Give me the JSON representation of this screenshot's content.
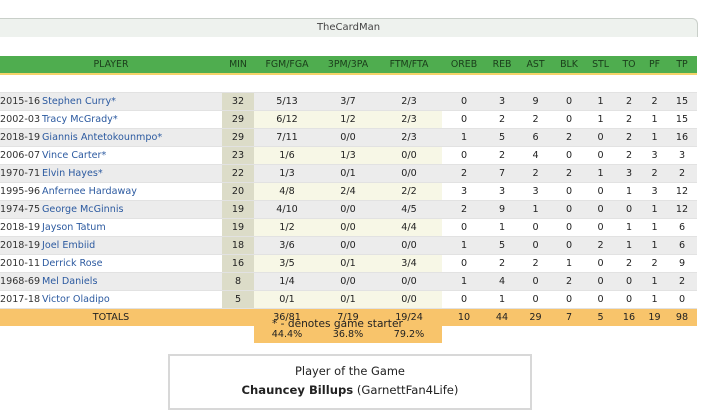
{
  "team": "TheCardMan",
  "headers": {
    "player": "PLAYER",
    "min": "MIN",
    "fgm": "FGM/FGA",
    "tpm": "3PM/3PA",
    "ftm": "FTM/FTA",
    "oreb": "OREB",
    "reb": "REB",
    "ast": "AST",
    "blk": "BLK",
    "stl": "STL",
    "to": "TO",
    "pf": "PF",
    "tp": "TP"
  },
  "players": [
    {
      "year": "2015-16",
      "name": "Stephen Curry*",
      "min": "32",
      "fg": "5/13",
      "tp3": "3/7",
      "ft": "2/3",
      "oreb": "0",
      "reb": "3",
      "ast": "9",
      "blk": "0",
      "stl": "1",
      "to": "2",
      "pf": "2",
      "pts": "15"
    },
    {
      "year": "2002-03",
      "name": "Tracy McGrady*",
      "min": "29",
      "fg": "6/12",
      "tp3": "1/2",
      "ft": "2/3",
      "oreb": "0",
      "reb": "2",
      "ast": "2",
      "blk": "0",
      "stl": "1",
      "to": "2",
      "pf": "1",
      "pts": "15"
    },
    {
      "year": "2018-19",
      "name": "Giannis Antetokounmpo*",
      "min": "29",
      "fg": "7/11",
      "tp3": "0/0",
      "ft": "2/3",
      "oreb": "1",
      "reb": "5",
      "ast": "6",
      "blk": "2",
      "stl": "0",
      "to": "2",
      "pf": "1",
      "pts": "16"
    },
    {
      "year": "2006-07",
      "name": "Vince Carter*",
      "min": "23",
      "fg": "1/6",
      "tp3": "1/3",
      "ft": "0/0",
      "oreb": "0",
      "reb": "2",
      "ast": "4",
      "blk": "0",
      "stl": "0",
      "to": "2",
      "pf": "3",
      "pts": "3"
    },
    {
      "year": "1970-71",
      "name": "Elvin Hayes*",
      "min": "22",
      "fg": "1/3",
      "tp3": "0/1",
      "ft": "0/0",
      "oreb": "2",
      "reb": "7",
      "ast": "2",
      "blk": "2",
      "stl": "1",
      "to": "3",
      "pf": "2",
      "pts": "2"
    },
    {
      "year": "1995-96",
      "name": "Anfernee Hardaway",
      "min": "20",
      "fg": "4/8",
      "tp3": "2/4",
      "ft": "2/2",
      "oreb": "3",
      "reb": "3",
      "ast": "3",
      "blk": "0",
      "stl": "0",
      "to": "1",
      "pf": "3",
      "pts": "12"
    },
    {
      "year": "1974-75",
      "name": "George McGinnis",
      "min": "19",
      "fg": "4/10",
      "tp3": "0/0",
      "ft": "4/5",
      "oreb": "2",
      "reb": "9",
      "ast": "1",
      "blk": "0",
      "stl": "0",
      "to": "0",
      "pf": "1",
      "pts": "12"
    },
    {
      "year": "2018-19",
      "name": "Jayson Tatum",
      "min": "19",
      "fg": "1/2",
      "tp3": "0/0",
      "ft": "4/4",
      "oreb": "0",
      "reb": "1",
      "ast": "0",
      "blk": "0",
      "stl": "0",
      "to": "1",
      "pf": "1",
      "pts": "6"
    },
    {
      "year": "2018-19",
      "name": "Joel Embiid",
      "min": "18",
      "fg": "3/6",
      "tp3": "0/0",
      "ft": "0/0",
      "oreb": "1",
      "reb": "5",
      "ast": "0",
      "blk": "0",
      "stl": "2",
      "to": "1",
      "pf": "1",
      "pts": "6"
    },
    {
      "year": "2010-11",
      "name": "Derrick Rose",
      "min": "16",
      "fg": "3/5",
      "tp3": "0/1",
      "ft": "3/4",
      "oreb": "0",
      "reb": "2",
      "ast": "2",
      "blk": "1",
      "stl": "0",
      "to": "2",
      "pf": "2",
      "pts": "9"
    },
    {
      "year": "1968-69",
      "name": "Mel Daniels",
      "min": "8",
      "fg": "1/4",
      "tp3": "0/0",
      "ft": "0/0",
      "oreb": "1",
      "reb": "4",
      "ast": "0",
      "blk": "2",
      "stl": "0",
      "to": "0",
      "pf": "1",
      "pts": "2"
    },
    {
      "year": "2017-18",
      "name": "Victor Oladipo",
      "min": "5",
      "fg": "0/1",
      "tp3": "0/1",
      "ft": "0/0",
      "oreb": "0",
      "reb": "1",
      "ast": "0",
      "blk": "0",
      "stl": "0",
      "to": "0",
      "pf": "1",
      "pts": "0"
    }
  ],
  "totals": {
    "label": "TOTALS",
    "fg": "36/81",
    "tp3": "7/19",
    "ft": "19/24",
    "oreb": "10",
    "reb": "44",
    "ast": "29",
    "blk": "7",
    "stl": "5",
    "to": "16",
    "pf": "19",
    "pts": "98",
    "fg_pct": "44.4%",
    "tp3_pct": "36.8%",
    "ft_pct": "79.2%"
  },
  "starter_note": "* - denotes game starter",
  "player_of_game": {
    "title": "Player of the Game",
    "name": "Chauncey Billups",
    "owner": "(GarnettFan4Life)"
  }
}
